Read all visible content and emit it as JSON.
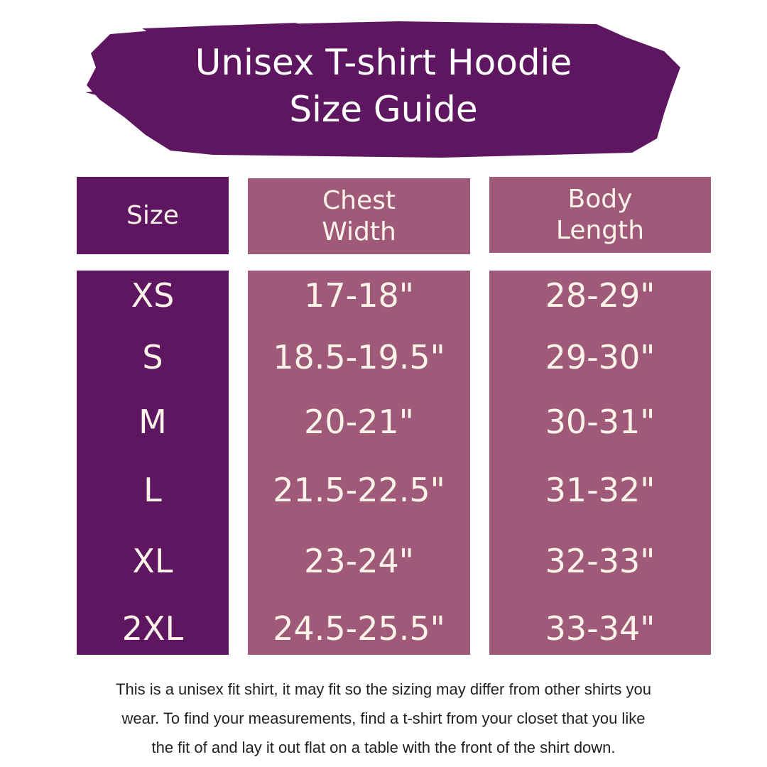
{
  "colors": {
    "dark": "#5e1660",
    "mauve": "#9e5a78",
    "text": "#fdf3e8"
  },
  "title": {
    "line1": "Unisex T-shirt Hoodie",
    "line2": "Size Guide"
  },
  "headers": {
    "size": "Size",
    "chest": [
      "Chest",
      "Width"
    ],
    "body": [
      "Body",
      "Length"
    ]
  },
  "rows": [
    {
      "size": "XS",
      "chest": "17-18\"",
      "body": "28-29\""
    },
    {
      "size": "S",
      "chest": "18.5-19.5\"",
      "body": "29-30\""
    },
    {
      "size": "M",
      "chest": "20-21\"",
      "body": "30-31\""
    },
    {
      "size": "L",
      "chest": "21.5-22.5\"",
      "body": "31-32\""
    },
    {
      "size": "XL",
      "chest": "23-24\"",
      "body": "32-33\""
    },
    {
      "size": "2XL",
      "chest": "24.5-25.5\"",
      "body": "33-34\""
    }
  ],
  "footer": [
    "This is a unisex fit shirt, it may fit so the sizing may differ from other shirts you",
    "wear. To find your measurements, find a t-shirt from your closet that you like",
    "the fit of and lay it out flat on a table with the front of the shirt down."
  ]
}
